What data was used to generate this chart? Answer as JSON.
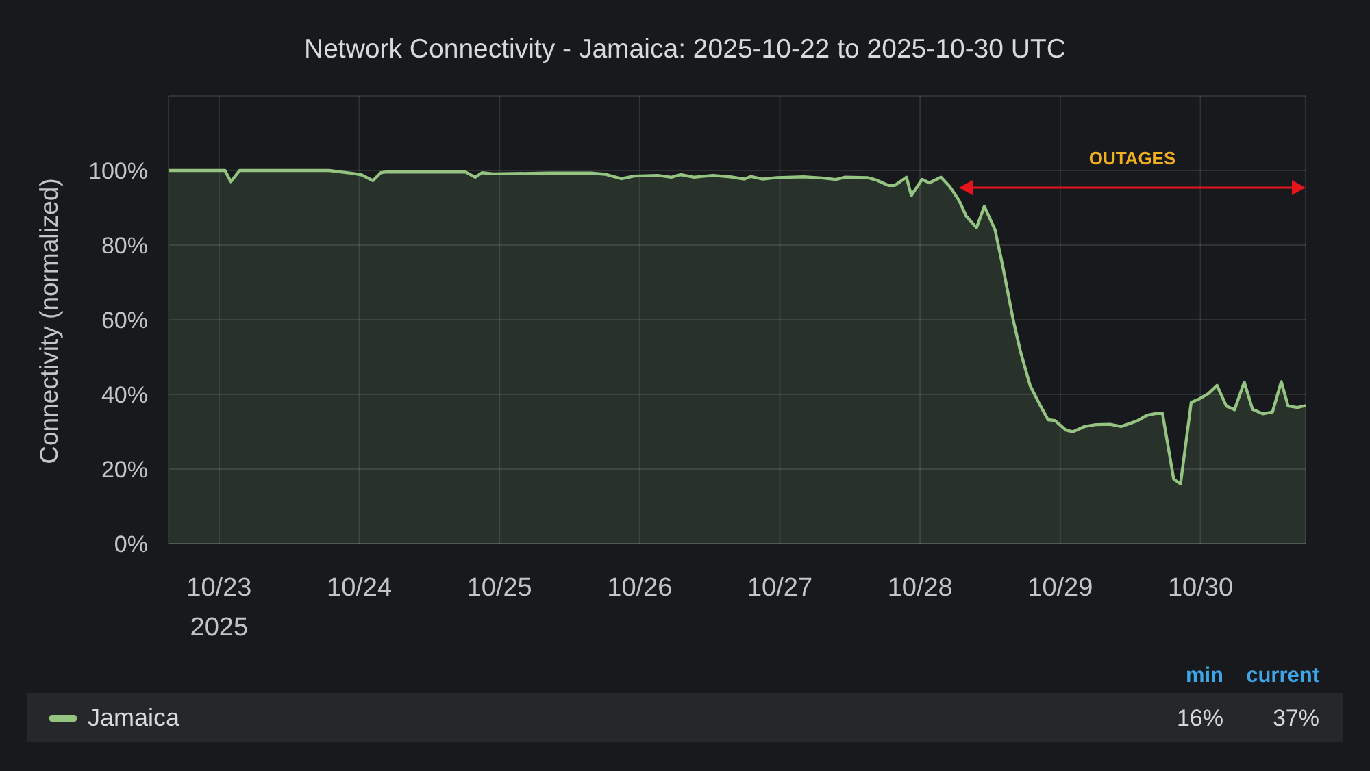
{
  "chart_data": {
    "type": "area",
    "title": "Network Connectivity - Jamaica: 2025-10-22 to 2025-10-30 UTC",
    "ylabel": "Connectivity (normalized)",
    "x": [
      "2025-10-22T15:20",
      "2025-10-23T00:00",
      "2025-10-23T01:00",
      "2025-10-23T02:00",
      "2025-10-23T03:30",
      "2025-10-23T18:50",
      "2025-10-23T23:00",
      "2025-10-24T00:25",
      "2025-10-24T02:20",
      "2025-10-24T03:40",
      "2025-10-24T04:35",
      "2025-10-24T18:10",
      "2025-10-24T19:50",
      "2025-10-24T21:00",
      "2025-10-24T22:55",
      "2025-10-25T08:20",
      "2025-10-25T15:40",
      "2025-10-25T18:05",
      "2025-10-25T20:50",
      "2025-10-25T23:05",
      "2025-10-26T03:05",
      "2025-10-26T05:25",
      "2025-10-26T07:00",
      "2025-10-26T09:20",
      "2025-10-26T12:30",
      "2025-10-26T15:30",
      "2025-10-26T17:55",
      "2025-10-26T19:00",
      "2025-10-26T21:05",
      "2025-10-26T23:25",
      "2025-10-27T04:05",
      "2025-10-27T07:10",
      "2025-10-27T09:35",
      "2025-10-27T11:05",
      "2025-10-27T15:00",
      "2025-10-27T16:35",
      "2025-10-27T18:35",
      "2025-10-27T19:40",
      "2025-10-27T21:40",
      "2025-10-27T22:30",
      "2025-10-28T00:20",
      "2025-10-28T01:35",
      "2025-10-28T03:35",
      "2025-10-28T05:05",
      "2025-10-28T06:40",
      "2025-10-28T07:55",
      "2025-10-28T09:40",
      "2025-10-28T11:00",
      "2025-10-28T12:50",
      "2025-10-28T14:05",
      "2025-10-28T15:55",
      "2025-10-28T17:10",
      "2025-10-28T18:50",
      "2025-10-28T20:25",
      "2025-10-28T21:55",
      "2025-10-28T23:05",
      "2025-10-29T01:00",
      "2025-10-29T02:10",
      "2025-10-29T04:10",
      "2025-10-29T06:05",
      "2025-10-29T08:30",
      "2025-10-29T10:25",
      "2025-10-29T13:10",
      "2025-10-29T14:50",
      "2025-10-29T16:20",
      "2025-10-29T17:30",
      "2025-10-29T19:25",
      "2025-10-29T20:35",
      "2025-10-29T22:25",
      "2025-10-29T23:40",
      "2025-10-30T01:20",
      "2025-10-30T02:50",
      "2025-10-30T04:25",
      "2025-10-30T05:50",
      "2025-10-30T07:30",
      "2025-10-30T08:55",
      "2025-10-30T10:40",
      "2025-10-30T12:20",
      "2025-10-30T13:50",
      "2025-10-30T15:00",
      "2025-10-30T16:35",
      "2025-10-30T18:00"
    ],
    "series": [
      {
        "name": "Jamaica",
        "color": "#94c382",
        "values": [
          100,
          100,
          100,
          97,
          100,
          100,
          99.2,
          98.8,
          97.3,
          99.4,
          99.6,
          99.6,
          98.2,
          99.4,
          99.1,
          99.3,
          99.3,
          99,
          97.8,
          98.5,
          98.7,
          98.2,
          98.9,
          98.2,
          98.7,
          98.3,
          97.7,
          98.4,
          97.7,
          98.1,
          98.3,
          98,
          97.6,
          98.2,
          98.1,
          97.4,
          96,
          96,
          98.2,
          93.3,
          97.6,
          96.7,
          98.2,
          95.7,
          92,
          87.7,
          84.7,
          90.4,
          84.1,
          74.9,
          60.2,
          51.6,
          42.4,
          37.5,
          33.2,
          33,
          30.4,
          30,
          31.4,
          31.9,
          32,
          31.4,
          32.9,
          34.4,
          34.9,
          34.9,
          17.3,
          16,
          37.9,
          38.7,
          40.2,
          42.4,
          36.9,
          35.9,
          43.3,
          36,
          34.8,
          35.3,
          43.4,
          36.9,
          36.5,
          37
        ]
      }
    ],
    "xlim": [
      "2025-10-22T15:20",
      "2025-10-30T18:00"
    ],
    "xticks": [
      {
        "value": "2025-10-23",
        "label": "10/23\n2025"
      },
      {
        "value": "2025-10-24",
        "label": "10/24"
      },
      {
        "value": "2025-10-25",
        "label": "10/25"
      },
      {
        "value": "2025-10-26",
        "label": "10/26"
      },
      {
        "value": "2025-10-27",
        "label": "10/27"
      },
      {
        "value": "2025-10-28",
        "label": "10/28"
      },
      {
        "value": "2025-10-29",
        "label": "10/29"
      },
      {
        "value": "2025-10-30",
        "label": "10/30"
      }
    ],
    "ylim": [
      0,
      120
    ],
    "yticks": [
      {
        "value": 0,
        "label": "0%"
      },
      {
        "value": 20,
        "label": "20%"
      },
      {
        "value": 40,
        "label": "40%"
      },
      {
        "value": 60,
        "label": "60%"
      },
      {
        "value": 80,
        "label": "80%"
      },
      {
        "value": 100,
        "label": "100%"
      },
      {
        "value": 120,
        "label": null
      }
    ],
    "annotations": [
      "OUTAGES",
      "min",
      "current",
      "16%",
      "37%"
    ],
    "grid": true,
    "legend": "bottom"
  }
}
